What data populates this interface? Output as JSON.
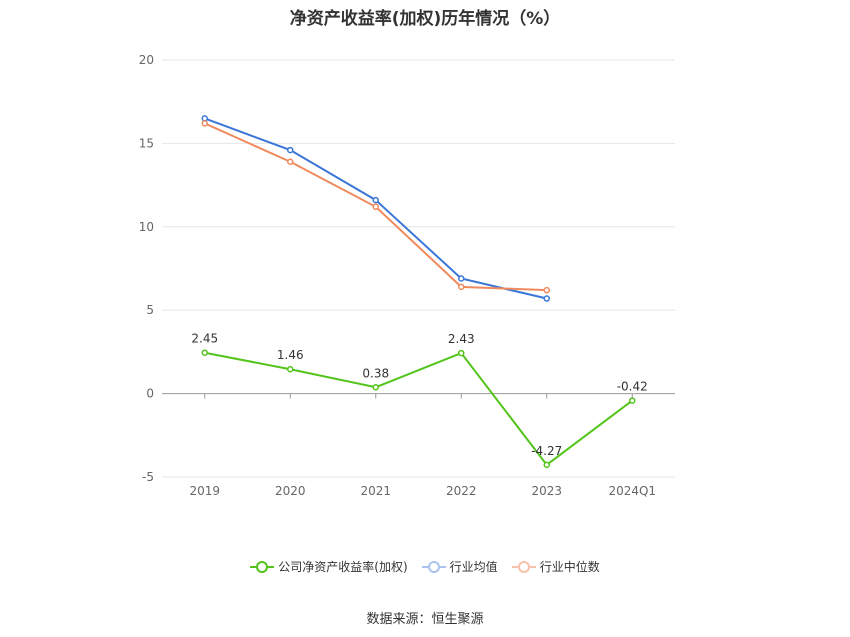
{
  "title": "净资产收益率(加权)历年情况（%）",
  "source": "数据来源：恒生聚源",
  "chart_data": {
    "type": "line",
    "categories": [
      "2019",
      "2020",
      "2021",
      "2022",
      "2023",
      "2024Q1"
    ],
    "ylim": [
      -5,
      20
    ],
    "yticks": [
      -5,
      0,
      5,
      10,
      15,
      20
    ],
    "grid": true,
    "legend_position": "bottom",
    "series": [
      {
        "name": "公司净资产收益率(加权)",
        "color": "#52c41a",
        "values": [
          2.45,
          1.46,
          0.38,
          2.43,
          -4.27,
          -0.42
        ],
        "labels": [
          "2.45",
          "1.46",
          "0.38",
          "2.43",
          "-4.27",
          "-0.42"
        ]
      },
      {
        "name": "行业均值",
        "color": "#3a76d8",
        "values": [
          16.5,
          14.6,
          11.6,
          6.9,
          5.7,
          null
        ]
      },
      {
        "name": "行业中位数",
        "color": "#f08a5d",
        "values": [
          16.2,
          13.9,
          11.2,
          6.4,
          6.2,
          null
        ]
      }
    ]
  }
}
